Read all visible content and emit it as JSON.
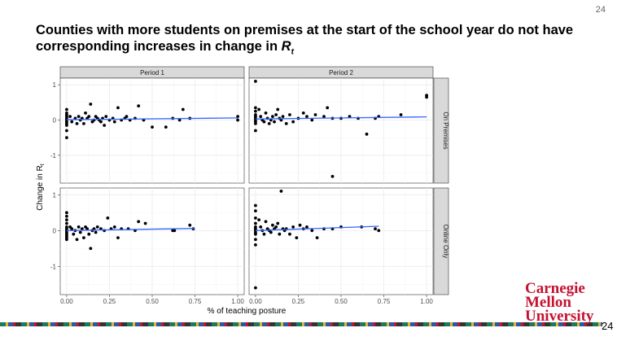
{
  "page": {
    "number": "24",
    "bottom_number": "24"
  },
  "slide": {
    "title_main": "Counties with more students on premises at the start of the school year do not have corresponding increases in change in ",
    "title_math": "R",
    "title_sub": "t"
  },
  "logo": {
    "line1": "Carnegie",
    "line2": "Mellon",
    "line3": "University"
  },
  "colors": {
    "points": "#000000",
    "trend": "#3366ff",
    "strip": "#d9d9d9",
    "panel_bg": "#ffffff",
    "grid": "#ebebeb",
    "brand": "#c41230"
  },
  "chart_data": {
    "type": "scatter",
    "ylabel": "Change in R",
    "ylabel_sub": "t",
    "xlabel": "% of teaching posture",
    "col_facets": [
      "Period 1",
      "Period 2"
    ],
    "row_facets": [
      "On Premises",
      "Online Only"
    ],
    "xlim": [
      0,
      1
    ],
    "ylim": [
      -1.7,
      1.1
    ],
    "x_ticks": [
      0,
      0.25,
      0.5,
      0.75,
      1.0
    ],
    "x_tick_labels": [
      "0.00",
      "0.25",
      "0.50",
      "0.75",
      "1.00"
    ],
    "y_ticks": [
      -1,
      0,
      1
    ],
    "y_tick_labels": [
      "-1",
      "0",
      "1"
    ],
    "panels": [
      {
        "row": "On Premises",
        "col": "Period 1",
        "trend": [
          [
            0,
            0.01
          ],
          [
            1,
            0.06
          ]
        ],
        "points": [
          [
            0,
            0.3
          ],
          [
            0,
            0.2
          ],
          [
            0,
            0.15
          ],
          [
            0,
            0.1
          ],
          [
            0,
            0.05
          ],
          [
            0,
            0.0
          ],
          [
            0,
            -0.05
          ],
          [
            0,
            -0.1
          ],
          [
            0,
            -0.15
          ],
          [
            0,
            -0.3
          ],
          [
            0,
            -0.5
          ],
          [
            0.02,
            0.1
          ],
          [
            0.03,
            -0.05
          ],
          [
            0.05,
            0.05
          ],
          [
            0.06,
            -0.1
          ],
          [
            0.07,
            0.1
          ],
          [
            0.08,
            0.0
          ],
          [
            0.09,
            0.05
          ],
          [
            0.1,
            -0.1
          ],
          [
            0.11,
            0.2
          ],
          [
            0.12,
            0.05
          ],
          [
            0.13,
            0.1
          ],
          [
            0.14,
            0.45
          ],
          [
            0.15,
            -0.05
          ],
          [
            0.16,
            0.0
          ],
          [
            0.17,
            0.1
          ],
          [
            0.18,
            0.05
          ],
          [
            0.19,
            0.0
          ],
          [
            0.2,
            -0.05
          ],
          [
            0.21,
            0.05
          ],
          [
            0.22,
            -0.15
          ],
          [
            0.23,
            0.1
          ],
          [
            0.25,
            0.0
          ],
          [
            0.27,
            0.05
          ],
          [
            0.28,
            -0.05
          ],
          [
            0.3,
            0.35
          ],
          [
            0.32,
            0.0
          ],
          [
            0.34,
            0.05
          ],
          [
            0.35,
            0.1
          ],
          [
            0.37,
            0.0
          ],
          [
            0.4,
            0.05
          ],
          [
            0.42,
            0.4
          ],
          [
            0.45,
            0.0
          ],
          [
            0.5,
            -0.2
          ],
          [
            0.58,
            -0.2
          ],
          [
            0.62,
            0.05
          ],
          [
            0.66,
            0.0
          ],
          [
            0.68,
            0.3
          ],
          [
            0.72,
            0.05
          ],
          [
            1.0,
            0.1
          ],
          [
            1.0,
            0.0
          ]
        ]
      },
      {
        "row": "On Premises",
        "col": "Period 2",
        "trend": [
          [
            0,
            0.03
          ],
          [
            1,
            0.09
          ]
        ],
        "points": [
          [
            0,
            1.1
          ],
          [
            0,
            0.35
          ],
          [
            0,
            0.25
          ],
          [
            0,
            0.15
          ],
          [
            0,
            0.1
          ],
          [
            0,
            0.05
          ],
          [
            0,
            0.0
          ],
          [
            0,
            -0.05
          ],
          [
            0,
            -0.1
          ],
          [
            0,
            -0.3
          ],
          [
            0.02,
            0.3
          ],
          [
            0.03,
            0.1
          ],
          [
            0.04,
            0.0
          ],
          [
            0.05,
            -0.05
          ],
          [
            0.06,
            0.2
          ],
          [
            0.07,
            0.05
          ],
          [
            0.08,
            -0.1
          ],
          [
            0.09,
            0.0
          ],
          [
            0.1,
            0.1
          ],
          [
            0.11,
            -0.05
          ],
          [
            0.12,
            0.15
          ],
          [
            0.13,
            0.3
          ],
          [
            0.14,
            0.05
          ],
          [
            0.15,
            0.0
          ],
          [
            0.16,
            0.1
          ],
          [
            0.18,
            -0.1
          ],
          [
            0.2,
            0.15
          ],
          [
            0.22,
            -0.05
          ],
          [
            0.25,
            0.05
          ],
          [
            0.28,
            0.2
          ],
          [
            0.3,
            0.1
          ],
          [
            0.33,
            0.0
          ],
          [
            0.35,
            0.15
          ],
          [
            0.4,
            0.1
          ],
          [
            0.42,
            0.35
          ],
          [
            0.45,
            0.05
          ],
          [
            0.45,
            -1.6
          ],
          [
            0.5,
            0.05
          ],
          [
            0.55,
            0.1
          ],
          [
            0.6,
            0.05
          ],
          [
            0.65,
            -0.4
          ],
          [
            0.7,
            0.05
          ],
          [
            0.72,
            0.1
          ],
          [
            0.85,
            0.15
          ],
          [
            1.0,
            0.7
          ],
          [
            1.0,
            0.65
          ]
        ]
      },
      {
        "row": "Online Only",
        "col": "Period 1",
        "trend": [
          [
            0,
            0.0
          ],
          [
            0.75,
            0.06
          ]
        ],
        "points": [
          [
            0,
            0.5
          ],
          [
            0,
            0.4
          ],
          [
            0,
            0.3
          ],
          [
            0,
            0.2
          ],
          [
            0,
            0.1
          ],
          [
            0,
            0.05
          ],
          [
            0,
            0.0
          ],
          [
            0,
            -0.05
          ],
          [
            0,
            -0.1
          ],
          [
            0,
            -0.15
          ],
          [
            0,
            -0.2
          ],
          [
            0,
            -0.25
          ],
          [
            0.02,
            0.1
          ],
          [
            0.03,
            0.05
          ],
          [
            0.04,
            -0.1
          ],
          [
            0.05,
            0.0
          ],
          [
            0.06,
            -0.25
          ],
          [
            0.07,
            0.1
          ],
          [
            0.08,
            -0.05
          ],
          [
            0.09,
            0.05
          ],
          [
            0.1,
            -0.2
          ],
          [
            0.11,
            0.1
          ],
          [
            0.12,
            0.05
          ],
          [
            0.13,
            -0.1
          ],
          [
            0.14,
            -0.5
          ],
          [
            0.15,
            0.0
          ],
          [
            0.16,
            0.05
          ],
          [
            0.17,
            -0.05
          ],
          [
            0.18,
            0.1
          ],
          [
            0.2,
            0.05
          ],
          [
            0.22,
            0.0
          ],
          [
            0.24,
            0.35
          ],
          [
            0.26,
            0.05
          ],
          [
            0.28,
            0.1
          ],
          [
            0.3,
            -0.2
          ],
          [
            0.32,
            0.05
          ],
          [
            0.36,
            0.05
          ],
          [
            0.4,
            0.0
          ],
          [
            0.42,
            0.25
          ],
          [
            0.46,
            0.2
          ],
          [
            0.62,
            0.0
          ],
          [
            0.63,
            0.0
          ],
          [
            0.72,
            0.15
          ],
          [
            0.74,
            0.05
          ]
        ]
      },
      {
        "row": "Online Only",
        "col": "Period 2",
        "trend": [
          [
            0,
            0.0
          ],
          [
            0.72,
            0.12
          ]
        ],
        "points": [
          [
            0,
            0.7
          ],
          [
            0,
            0.55
          ],
          [
            0,
            0.35
          ],
          [
            0,
            0.2
          ],
          [
            0,
            0.1
          ],
          [
            0,
            0.05
          ],
          [
            0,
            0.0
          ],
          [
            0,
            -0.05
          ],
          [
            0,
            -0.1
          ],
          [
            0,
            -0.25
          ],
          [
            0,
            -0.4
          ],
          [
            0,
            -1.6
          ],
          [
            0.02,
            0.3
          ],
          [
            0.03,
            0.1
          ],
          [
            0.04,
            0.0
          ],
          [
            0.05,
            -0.1
          ],
          [
            0.06,
            0.25
          ],
          [
            0.07,
            0.05
          ],
          [
            0.08,
            0.0
          ],
          [
            0.09,
            -0.05
          ],
          [
            0.1,
            0.15
          ],
          [
            0.11,
            0.05
          ],
          [
            0.12,
            0.1
          ],
          [
            0.13,
            0.2
          ],
          [
            0.14,
            -0.1
          ],
          [
            0.15,
            1.1
          ],
          [
            0.16,
            0.05
          ],
          [
            0.17,
            0.0
          ],
          [
            0.18,
            0.05
          ],
          [
            0.2,
            -0.1
          ],
          [
            0.22,
            0.1
          ],
          [
            0.24,
            -0.2
          ],
          [
            0.26,
            0.15
          ],
          [
            0.28,
            0.05
          ],
          [
            0.3,
            0.1
          ],
          [
            0.33,
            0.0
          ],
          [
            0.36,
            -0.2
          ],
          [
            0.4,
            0.05
          ],
          [
            0.45,
            0.05
          ],
          [
            0.5,
            0.1
          ],
          [
            0.62,
            0.1
          ],
          [
            0.7,
            0.05
          ],
          [
            0.72,
            0.0
          ]
        ]
      }
    ]
  }
}
